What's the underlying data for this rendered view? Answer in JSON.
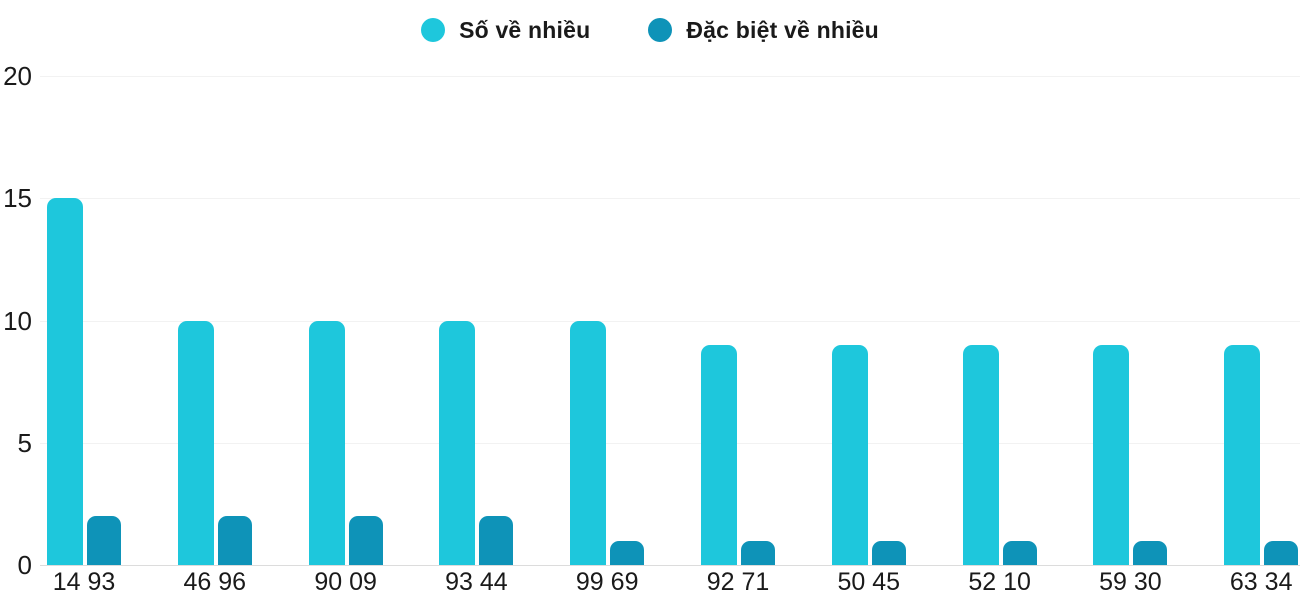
{
  "legend": {
    "items": [
      {
        "label": "Số về nhiều",
        "color": "#1ec7dc"
      },
      {
        "label": "Đặc biệt về nhiều",
        "color": "#0e93b8"
      }
    ]
  },
  "chart_data": {
    "type": "bar",
    "title": "",
    "xlabel": "",
    "ylabel": "",
    "categories": [
      "14 93",
      "46 96",
      "90 09",
      "93 44",
      "99 69",
      "92 71",
      "50 45",
      "52 10",
      "59 30",
      "63 34"
    ],
    "series": [
      {
        "name": "Số về nhiều",
        "color": "#1ec7dc",
        "values": [
          15,
          10,
          10,
          10,
          10,
          9,
          9,
          9,
          9,
          9
        ]
      },
      {
        "name": "Đặc biệt về nhiều",
        "color": "#0e93b8",
        "values": [
          2,
          2,
          2,
          2,
          1,
          1,
          1,
          1,
          1,
          1
        ]
      }
    ],
    "ylim": [
      0,
      20
    ],
    "yticks": [
      0,
      5,
      10,
      15,
      20
    ],
    "grid": "horizontal",
    "legend_position": "top-center",
    "colors": {
      "gridline": "#f2f2f2",
      "baseline": "#dcdcdc",
      "text": "#1a1a1a",
      "background": "#ffffff"
    }
  }
}
